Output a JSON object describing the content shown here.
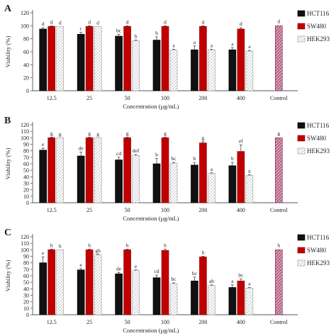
{
  "colors": {
    "HCT116": "#111111",
    "SW480": "#c00000",
    "HEK293": "#ffffff",
    "control": "#9a2a55"
  },
  "chart_data": [
    {
      "type": "bar",
      "panel": "A",
      "xlabel": "Concentration (µg/mL)",
      "ylabel": "Viability (%)",
      "ylim": [
        0,
        120
      ],
      "yticks": [
        0,
        20,
        40,
        60,
        80,
        100,
        120
      ],
      "categories": [
        "12.5",
        "25",
        "50",
        "100",
        "200",
        "400",
        "Control"
      ],
      "series": [
        {
          "name": "HCT116",
          "values": [
            95,
            87,
            84,
            78,
            63,
            63,
            null
          ],
          "errors": [
            2,
            3,
            3,
            5,
            6,
            3,
            null
          ],
          "letters": [
            "d",
            "c",
            "bc",
            "b",
            "a",
            "a",
            ""
          ]
        },
        {
          "name": "SW480",
          "values": [
            99,
            99,
            99,
            99,
            99,
            95,
            null
          ],
          "errors": [
            1,
            1,
            1,
            1,
            1,
            2,
            null
          ],
          "letters": [
            "d",
            "d",
            "d",
            "d",
            "d",
            "d",
            ""
          ]
        },
        {
          "name": "HEK293",
          "values": [
            99,
            99,
            77,
            63,
            63,
            61,
            null
          ],
          "errors": [
            0,
            0,
            1,
            1,
            1,
            1,
            null
          ],
          "letters": [
            "d",
            "d",
            "b",
            "a",
            "a",
            "a",
            ""
          ]
        }
      ],
      "control": {
        "value": 100,
        "letter": "d"
      }
    },
    {
      "type": "bar",
      "panel": "B",
      "xlabel": "Concentration (µg/mL)",
      "ylabel": "Viability (%)",
      "ylim": [
        0,
        120
      ],
      "yticks": [
        0,
        10,
        20,
        30,
        40,
        50,
        60,
        70,
        80,
        90,
        100,
        110,
        120
      ],
      "categories": [
        "12.5",
        "25",
        "50",
        "100",
        "200",
        "400",
        "Control"
      ],
      "series": [
        {
          "name": "HCT116",
          "values": [
            81,
            72,
            66,
            60,
            58,
            57,
            null
          ],
          "errors": [
            3,
            6,
            4,
            8,
            4,
            5,
            null
          ],
          "letters": [
            "e",
            "de",
            "cd",
            "b",
            "b",
            "b",
            ""
          ]
        },
        {
          "name": "SW480",
          "values": [
            100,
            100,
            100,
            100,
            92,
            79,
            null
          ],
          "errors": [
            1,
            1,
            1,
            1,
            2,
            10,
            null
          ],
          "letters": [
            "g",
            "g",
            "g",
            "g",
            "g",
            "ef",
            ""
          ]
        },
        {
          "name": "HEK293",
          "values": [
            100,
            100,
            73,
            61,
            45,
            42,
            null
          ],
          "errors": [
            0,
            0,
            1,
            1,
            1,
            1,
            null
          ],
          "letters": [
            "g",
            "g",
            "def",
            "bc",
            "a",
            "a",
            ""
          ]
        }
      ],
      "control": {
        "value": 100,
        "letter": "g"
      }
    },
    {
      "type": "bar",
      "panel": "C",
      "xlabel": "Concentration (µg/mL)",
      "ylabel": "Viability (%)",
      "ylim": [
        0,
        120
      ],
      "yticks": [
        0,
        10,
        20,
        30,
        40,
        50,
        60,
        70,
        80,
        90,
        100,
        110,
        120
      ],
      "categories": [
        "12.5",
        "25",
        "50",
        "100",
        "200",
        "400",
        "Control"
      ],
      "series": [
        {
          "name": "HCT116",
          "values": [
            80,
            69,
            63,
            57,
            52,
            42,
            null
          ],
          "errors": [
            9,
            2,
            2,
            4,
            6,
            4,
            null
          ],
          "letters": [
            "e",
            "e",
            "de",
            "cd",
            "bc",
            "a",
            ""
          ]
        },
        {
          "name": "SW480",
          "values": [
            100,
            100,
            100,
            99,
            89,
            52,
            null
          ],
          "errors": [
            1,
            1,
            1,
            2,
            1,
            3,
            null
          ],
          "letters": [
            "h",
            "h",
            "h",
            "h",
            "h",
            "bc",
            ""
          ]
        },
        {
          "name": "HEK293",
          "values": [
            100,
            92,
            68,
            48,
            45,
            41,
            null
          ],
          "errors": [
            0,
            1,
            1,
            1,
            1,
            1,
            null
          ],
          "letters": [
            "h",
            "gh",
            "e",
            "bc",
            "ab",
            "a",
            ""
          ]
        }
      ],
      "control": {
        "value": 100,
        "letter": "h"
      }
    }
  ]
}
